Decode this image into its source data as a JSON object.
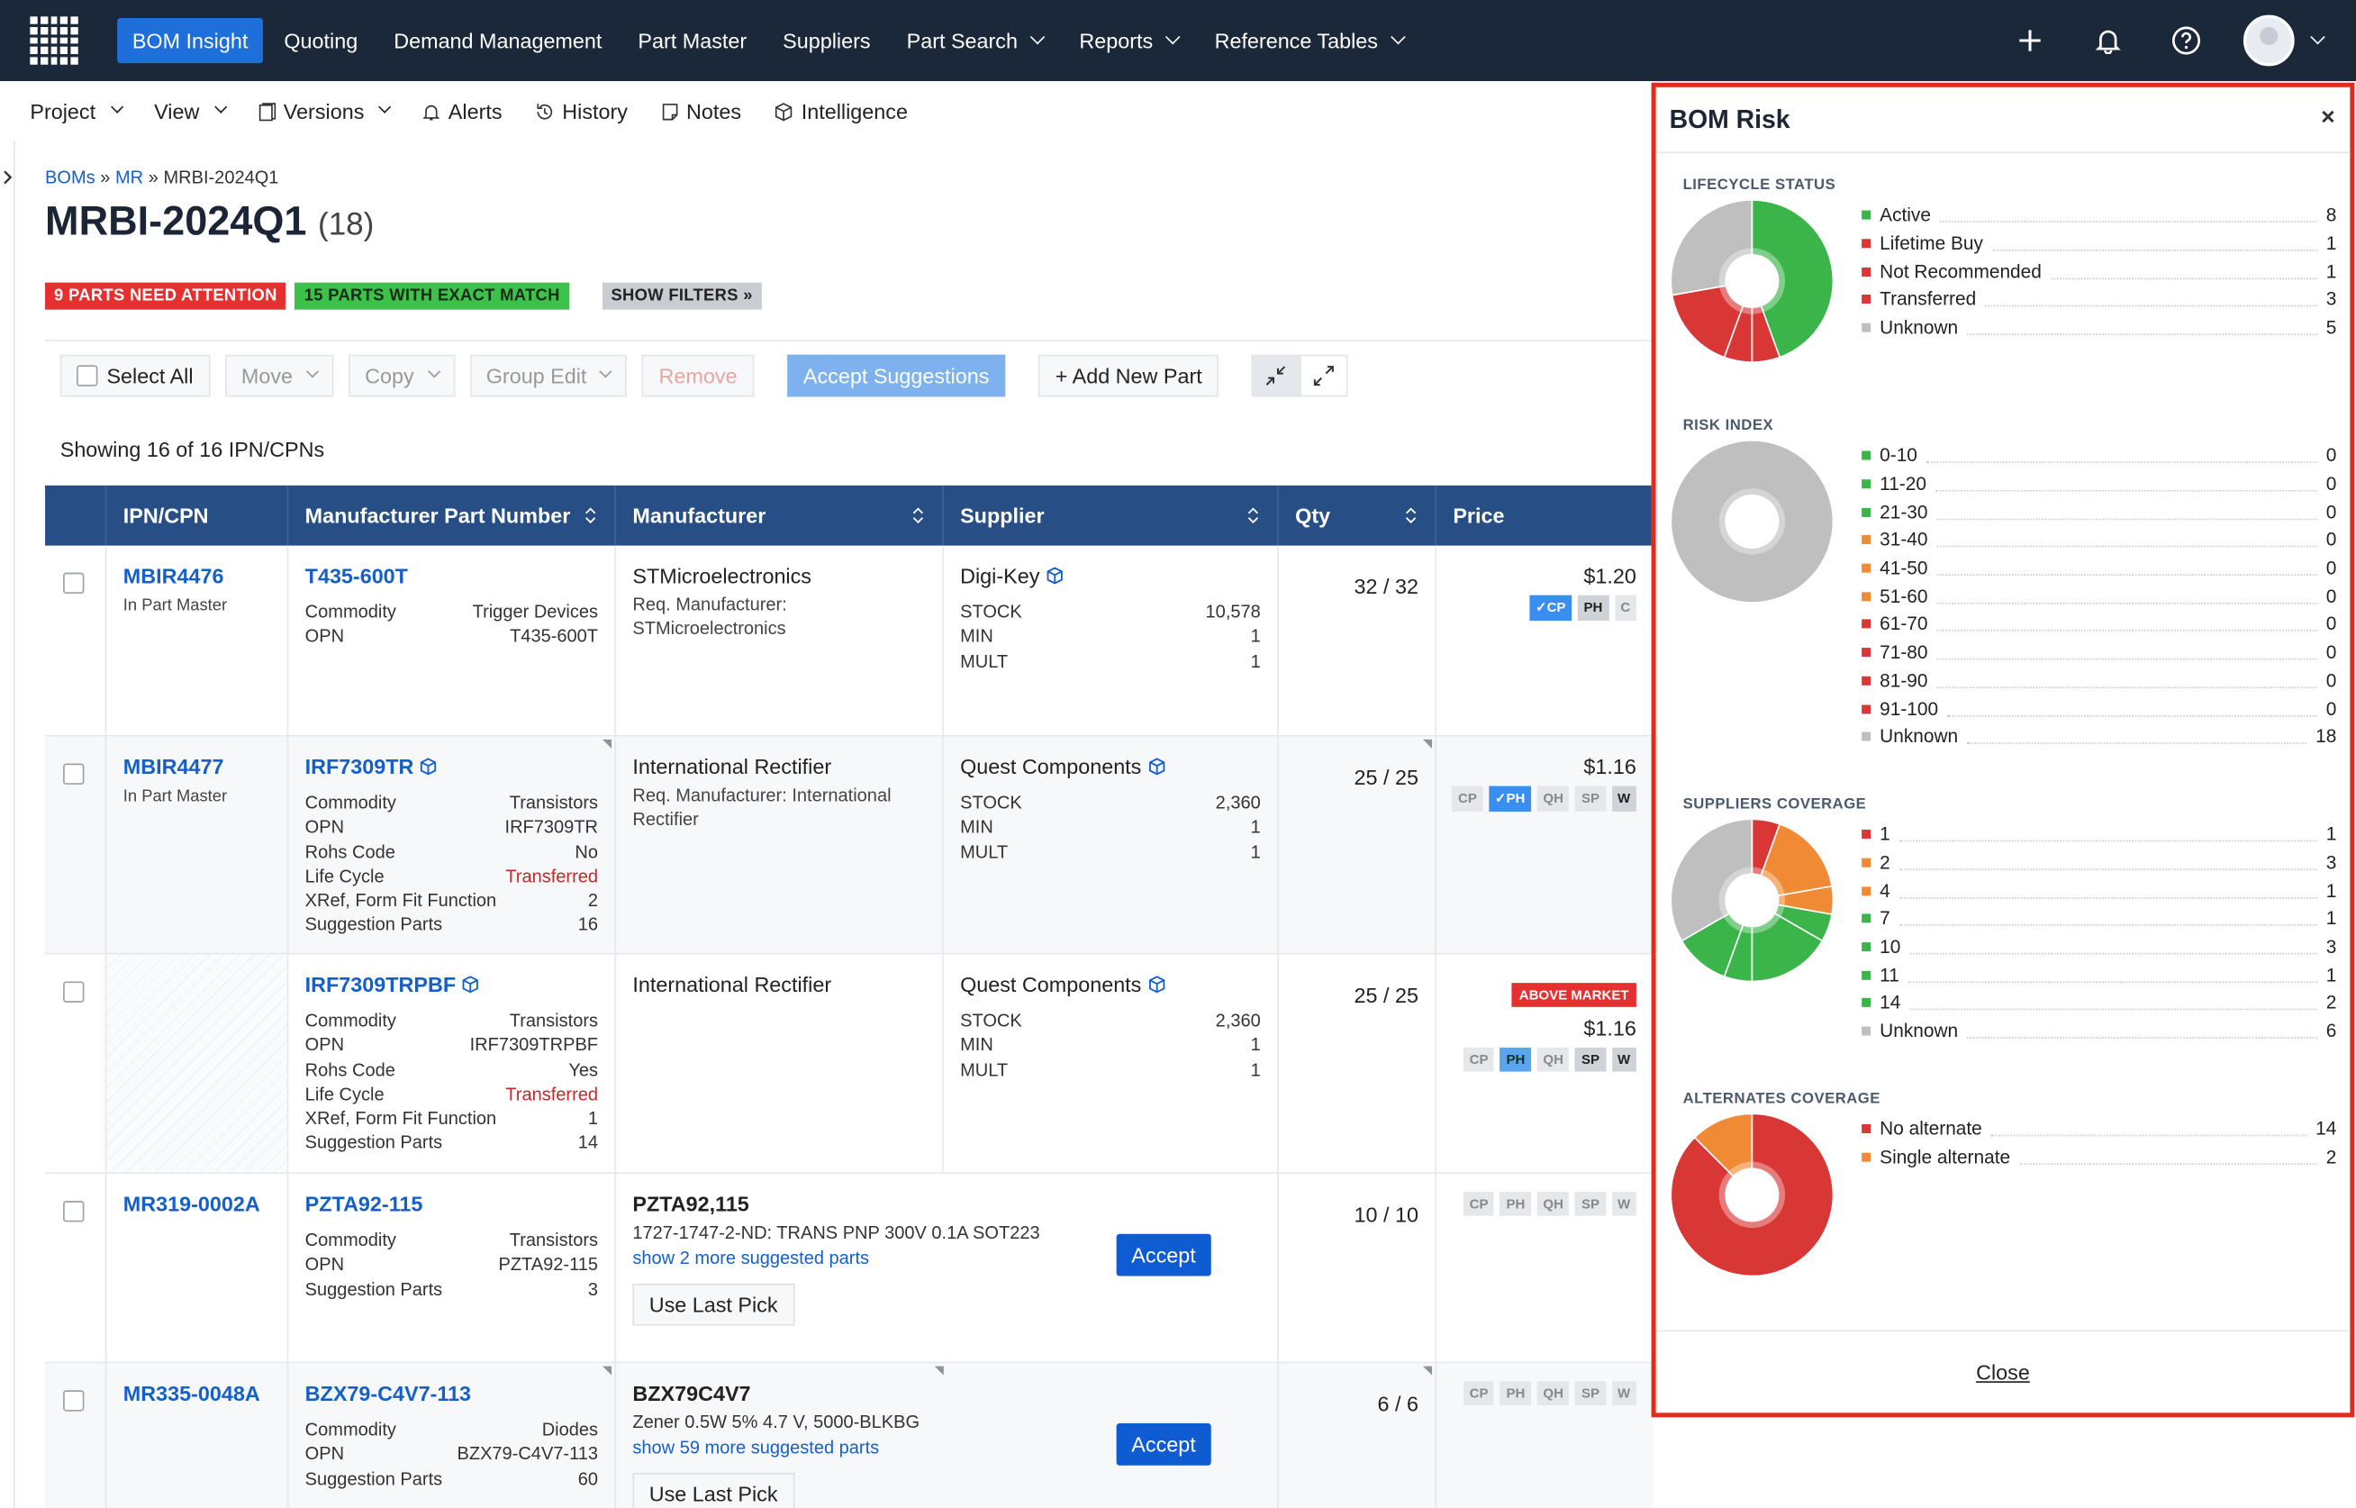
{
  "nav": {
    "items": [
      "BOM Insight",
      "Quoting",
      "Demand Management",
      "Part Master",
      "Suppliers",
      "Part Search",
      "Reports",
      "Reference Tables"
    ],
    "active": "BOM Insight"
  },
  "subbar": {
    "project": "Project",
    "view": "View",
    "versions": "Versions",
    "alerts": "Alerts",
    "history": "History",
    "notes": "Notes",
    "intelligence": "Intelligence"
  },
  "breadcrumb": {
    "root": "BOMs",
    "mid": "MR",
    "sep": "»",
    "current": "MRBI-2024Q1"
  },
  "page": {
    "title": "MRBI-2024Q1",
    "count": "(18)"
  },
  "badges": {
    "attention": "9 PARTS NEED ATTENTION",
    "exact": "15 PARTS WITH EXACT MATCH",
    "filters": "SHOW FILTERS »"
  },
  "toolbar": {
    "select_all": "Select All",
    "move": "Move",
    "copy": "Copy",
    "group_edit": "Group Edit",
    "remove": "Remove",
    "accept_suggestions": "Accept Suggestions",
    "add_new_part": "+ Add New Part"
  },
  "showing": "Showing 16 of 16 IPN/CPNs",
  "table": {
    "headers": [
      "IPN/CPN",
      "Manufacturer Part Number",
      "Manufacturer",
      "Supplier",
      "Qty",
      "Price"
    ],
    "rows": [
      {
        "ipn": "MBIR4476",
        "ipn_sub": "In Part Master",
        "mpn": "T435-600T",
        "attrs": [
          [
            "Commodity",
            "Trigger Devices"
          ],
          [
            "OPN",
            "T435-600T"
          ]
        ],
        "manufacturer": "STMicroelectronics",
        "req": "Req. Manufacturer: STMicroelectronics",
        "supplier": "Digi-Key",
        "stock": [
          [
            "STOCK",
            "10,578"
          ],
          [
            "MIN",
            "1"
          ],
          [
            "MULT",
            "1"
          ]
        ],
        "qty": "32 / 32",
        "price": "$1.20",
        "tags": [
          "CP",
          "PH",
          "C"
        ]
      },
      {
        "ipn": "MBIR4477",
        "ipn_sub": "In Part Master",
        "mpn": "IRF7309TR",
        "attrs": [
          [
            "Commodity",
            "Transistors"
          ],
          [
            "OPN",
            "IRF7309TR"
          ],
          [
            "Rohs Code",
            "No"
          ],
          [
            "Life Cycle",
            "Transferred"
          ],
          [
            "XRef, Form Fit Function",
            "2"
          ],
          [
            "Suggestion Parts",
            "16"
          ]
        ],
        "manufacturer": "International Rectifier",
        "req": "Req. Manufacturer: International Rectifier",
        "supplier": "Quest Components",
        "stock": [
          [
            "STOCK",
            "2,360"
          ],
          [
            "MIN",
            "1"
          ],
          [
            "MULT",
            "1"
          ]
        ],
        "qty": "25 / 25",
        "price": "$1.16",
        "tags": [
          "CP",
          "PH",
          "QH",
          "SP",
          "W"
        ]
      },
      {
        "ipn": "",
        "ipn_sub": "",
        "mpn": "IRF7309TRPBF",
        "attrs": [
          [
            "Commodity",
            "Transistors"
          ],
          [
            "OPN",
            "IRF7309TRPBF"
          ],
          [
            "Rohs Code",
            "Yes"
          ],
          [
            "Life Cycle",
            "Transferred"
          ],
          [
            "XRef, Form Fit Function",
            "1"
          ],
          [
            "Suggestion Parts",
            "14"
          ]
        ],
        "manufacturer": "International Rectifier",
        "req": "",
        "supplier": "Quest Components",
        "stock": [
          [
            "STOCK",
            "2,360"
          ],
          [
            "MIN",
            "1"
          ],
          [
            "MULT",
            "1"
          ]
        ],
        "qty": "25 / 25",
        "price": "$1.16",
        "above": "ABOVE MARKET",
        "tags": [
          "CP",
          "PH",
          "QH",
          "SP",
          "W"
        ]
      },
      {
        "ipn": "MR319-0002A",
        "ipn_sub": "",
        "mpn": "PZTA92-115",
        "attrs": [
          [
            "Commodity",
            "Transistors"
          ],
          [
            "OPN",
            "PZTA92-115"
          ],
          [
            "Suggestion Parts",
            "3"
          ]
        ],
        "suggestion": "PZTA92,115",
        "suggestion_desc": "1727-1747-2-ND: TRANS PNP 300V 0.1A SOT223",
        "more": "show 2 more suggested parts",
        "last_pick": "Use Last Pick",
        "accept": "Accept",
        "qty": "10 / 10",
        "tags": [
          "CP",
          "PH",
          "QH",
          "SP",
          "W"
        ]
      },
      {
        "ipn": "MR335-0048A",
        "ipn_sub": "",
        "mpn": "BZX79-C4V7-113",
        "attrs": [
          [
            "Commodity",
            "Diodes"
          ],
          [
            "OPN",
            "BZX79-C4V7-113"
          ],
          [
            "Suggestion Parts",
            "60"
          ]
        ],
        "suggestion": "BZX79C4V7",
        "suggestion_desc": "Zener 0.5W 5% 4.7 V, 5000-BLKBG",
        "more": "show 59 more suggested parts",
        "last_pick": "Use Last Pick",
        "accept": "Accept",
        "qty": "6 / 6",
        "tags": [
          "CP",
          "PH",
          "QH",
          "SP",
          "W"
        ]
      }
    ]
  },
  "panel": {
    "title": "BOM Risk",
    "close_x": "×",
    "close_link": "Close",
    "sections": [
      {
        "title": "LIFECYCLE STATUS",
        "items": [
          {
            "label": "Active",
            "value": 8,
            "color": "#3bb54a"
          },
          {
            "label": "Lifetime Buy",
            "value": 1,
            "color": "#d93636"
          },
          {
            "label": "Not Recommended",
            "value": 1,
            "color": "#d93636"
          },
          {
            "label": "Transferred",
            "value": 3,
            "color": "#d93636"
          },
          {
            "label": "Unknown",
            "value": 5,
            "color": "#bfbfbf"
          }
        ]
      },
      {
        "title": "RISK INDEX",
        "items": [
          {
            "label": "0-10",
            "value": 0,
            "color": "#3bb54a"
          },
          {
            "label": "11-20",
            "value": 0,
            "color": "#3bb54a"
          },
          {
            "label": "21-30",
            "value": 0,
            "color": "#3bb54a"
          },
          {
            "label": "31-40",
            "value": 0,
            "color": "#f08a34"
          },
          {
            "label": "41-50",
            "value": 0,
            "color": "#f08a34"
          },
          {
            "label": "51-60",
            "value": 0,
            "color": "#f08a34"
          },
          {
            "label": "61-70",
            "value": 0,
            "color": "#d93636"
          },
          {
            "label": "71-80",
            "value": 0,
            "color": "#d93636"
          },
          {
            "label": "81-90",
            "value": 0,
            "color": "#d93636"
          },
          {
            "label": "91-100",
            "value": 0,
            "color": "#d93636"
          },
          {
            "label": "Unknown",
            "value": 18,
            "color": "#bfbfbf"
          }
        ]
      },
      {
        "title": "SUPPLIERS COVERAGE",
        "items": [
          {
            "label": "1",
            "value": 1,
            "color": "#d93636"
          },
          {
            "label": "2",
            "value": 3,
            "color": "#f08a34"
          },
          {
            "label": "4",
            "value": 1,
            "color": "#f08a34"
          },
          {
            "label": "7",
            "value": 1,
            "color": "#3bb54a"
          },
          {
            "label": "10",
            "value": 3,
            "color": "#3bb54a"
          },
          {
            "label": "11",
            "value": 1,
            "color": "#3bb54a"
          },
          {
            "label": "14",
            "value": 2,
            "color": "#3bb54a"
          },
          {
            "label": "Unknown",
            "value": 6,
            "color": "#bfbfbf"
          }
        ]
      },
      {
        "title": "ALTERNATES COVERAGE",
        "items": [
          {
            "label": "No alternate",
            "value": 14,
            "color": "#d93636"
          },
          {
            "label": "Single alternate",
            "value": 2,
            "color": "#f08a34"
          }
        ]
      }
    ]
  }
}
